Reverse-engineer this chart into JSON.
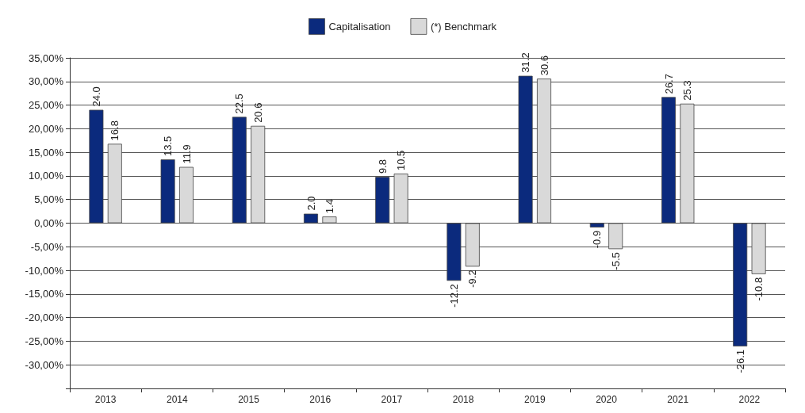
{
  "chart_data": {
    "type": "bar",
    "categories": [
      "2013",
      "2014",
      "2015",
      "2016",
      "2017",
      "2018",
      "2019",
      "2020",
      "2021",
      "2022"
    ],
    "series": [
      {
        "name": "Capitalisation",
        "color": "#0b2a7d",
        "values": [
          24.0,
          13.5,
          22.5,
          2.0,
          9.8,
          -12.2,
          31.2,
          -0.9,
          26.7,
          -26.1
        ],
        "value_labels": [
          "24.0",
          "13.5",
          "22.5",
          "2.0",
          "9.8",
          "-12.2",
          "31.2",
          "-0.9",
          "26.7",
          "-26.1"
        ]
      },
      {
        "name": "(*) Benchmark",
        "color": "#d9d9d9",
        "values": [
          16.8,
          11.9,
          20.6,
          1.4,
          10.5,
          -9.2,
          30.6,
          -5.5,
          25.3,
          -10.8
        ],
        "value_labels": [
          "16.8",
          "11.9",
          "20.6",
          "1.4",
          "10.5",
          "-9.2",
          "30.6",
          "-5.5",
          "25.3",
          "-10.8"
        ]
      }
    ],
    "ylim": [
      -35,
      35
    ],
    "yticks": [
      {
        "value": -35,
        "label": null
      },
      {
        "value": -30,
        "label": "-30,00%"
      },
      {
        "value": -25,
        "label": "-25,00%"
      },
      {
        "value": -20,
        "label": "-20,00%"
      },
      {
        "value": -15,
        "label": "-15,00%"
      },
      {
        "value": -10,
        "label": "-10,00%"
      },
      {
        "value": -5,
        "label": "-5,00%"
      },
      {
        "value": 0,
        "label": "0,00%"
      },
      {
        "value": 5,
        "label": "5,00%"
      },
      {
        "value": 10,
        "label": "10,00%"
      },
      {
        "value": 15,
        "label": "15,00%"
      },
      {
        "value": 20,
        "label": "20,00%"
      },
      {
        "value": 25,
        "label": "25,00%"
      },
      {
        "value": 30,
        "label": "30,00%"
      },
      {
        "value": 35,
        "label": "35,00%"
      }
    ],
    "grid": "y",
    "legend": "top"
  }
}
